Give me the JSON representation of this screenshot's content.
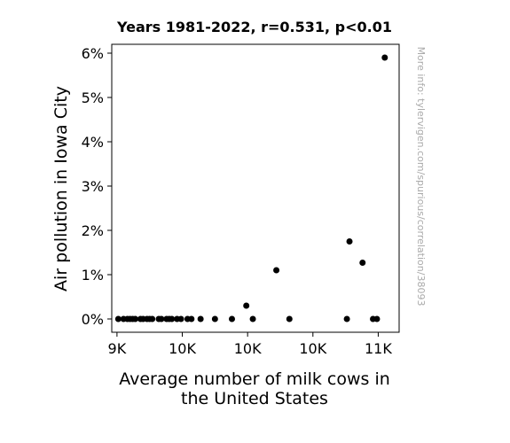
{
  "chart_data": {
    "type": "scatter",
    "title": "Years 1981-2022, r=0.531, p<0.01",
    "xlabel_lines": [
      "Average number of milk cows in",
      "the United States"
    ],
    "ylabel": "Air pollution in Iowa City",
    "watermark": "More info: tylervigen.com/spurious/correlation/38093",
    "xlim": [
      8960,
      11160
    ],
    "ylim": [
      -0.3,
      6.2
    ],
    "x_ticks": [
      {
        "value": 9000,
        "label": "9K"
      },
      {
        "value": 9500,
        "label": "10K"
      },
      {
        "value": 10000,
        "label": "10K"
      },
      {
        "value": 10500,
        "label": "10K"
      },
      {
        "value": 11000,
        "label": "11K"
      }
    ],
    "y_ticks": [
      {
        "value": 0,
        "label": "0%"
      },
      {
        "value": 1,
        "label": "1%"
      },
      {
        "value": 2,
        "label": "2%"
      },
      {
        "value": 3,
        "label": "3%"
      },
      {
        "value": 4,
        "label": "4%"
      },
      {
        "value": 5,
        "label": "5%"
      },
      {
        "value": 6,
        "label": "6%"
      }
    ],
    "points": [
      {
        "x": 9010,
        "y": 0
      },
      {
        "x": 9050,
        "y": 0
      },
      {
        "x": 9080,
        "y": 0
      },
      {
        "x": 9100,
        "y": 0
      },
      {
        "x": 9120,
        "y": 0
      },
      {
        "x": 9140,
        "y": 0
      },
      {
        "x": 9180,
        "y": 0
      },
      {
        "x": 9200,
        "y": 0
      },
      {
        "x": 9230,
        "y": 0
      },
      {
        "x": 9250,
        "y": 0
      },
      {
        "x": 9270,
        "y": 0
      },
      {
        "x": 9320,
        "y": 0
      },
      {
        "x": 9340,
        "y": 0
      },
      {
        "x": 9380,
        "y": 0
      },
      {
        "x": 9400,
        "y": 0
      },
      {
        "x": 9420,
        "y": 0
      },
      {
        "x": 9460,
        "y": 0
      },
      {
        "x": 9490,
        "y": 0
      },
      {
        "x": 9540,
        "y": 0
      },
      {
        "x": 9570,
        "y": 0
      },
      {
        "x": 9640,
        "y": 0
      },
      {
        "x": 9750,
        "y": 0
      },
      {
        "x": 9880,
        "y": 0
      },
      {
        "x": 9990,
        "y": 0.3
      },
      {
        "x": 10040,
        "y": 0
      },
      {
        "x": 10220,
        "y": 1.1
      },
      {
        "x": 10320,
        "y": 0
      },
      {
        "x": 10760,
        "y": 0
      },
      {
        "x": 10780,
        "y": 1.75
      },
      {
        "x": 10880,
        "y": 1.27
      },
      {
        "x": 10960,
        "y": 0
      },
      {
        "x": 10990,
        "y": 0
      },
      {
        "x": 11050,
        "y": 5.9
      }
    ],
    "marker_color": "#000000",
    "grid": false
  }
}
